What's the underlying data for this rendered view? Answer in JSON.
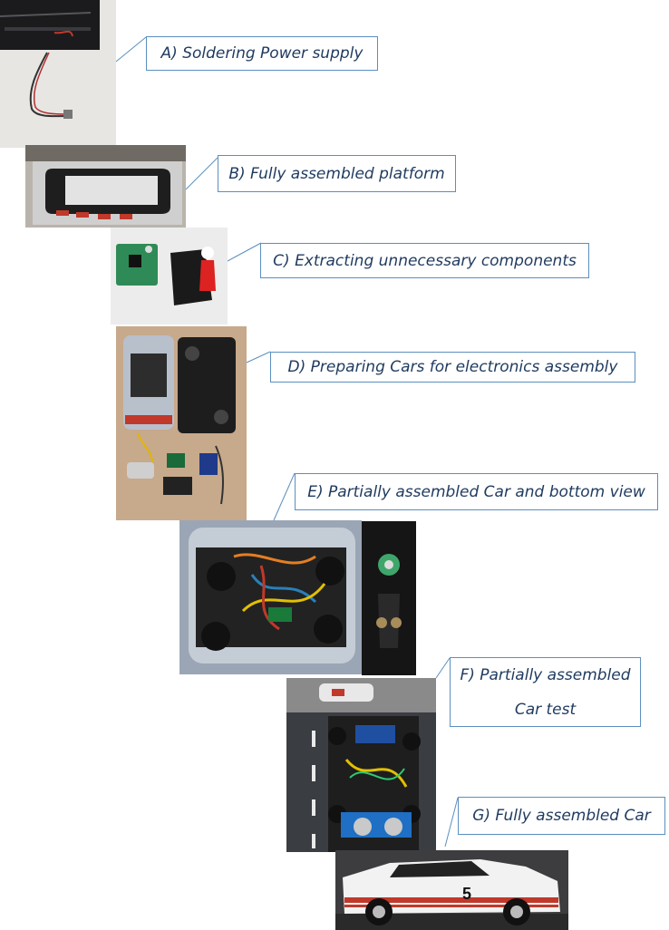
{
  "steps": [
    {
      "label": "A) Soldering Power supply",
      "photo": "power-supply-soldering-photo"
    },
    {
      "label": "B) Fully assembled platform",
      "photo": "slot-track-platform-photo"
    },
    {
      "label": "C) Extracting unnecessary components",
      "photo": "extracted-components-photo"
    },
    {
      "label": "D) Preparing Cars for electronics assembly",
      "photo": "disassembled-car-photo"
    },
    {
      "label": "E) Partially assembled Car and bottom view",
      "photo": "partial-car-photo"
    },
    {
      "label_line1": "F) Partially assembled",
      "label_line2": "Car test",
      "photo": "car-test-photo"
    },
    {
      "label": "G) Fully assembled Car",
      "photo": "assembled-car-photo"
    }
  ],
  "car_number": "5",
  "colors": {
    "callout_border": "#5b8fbf",
    "callout_text": "#1f3a5f"
  }
}
